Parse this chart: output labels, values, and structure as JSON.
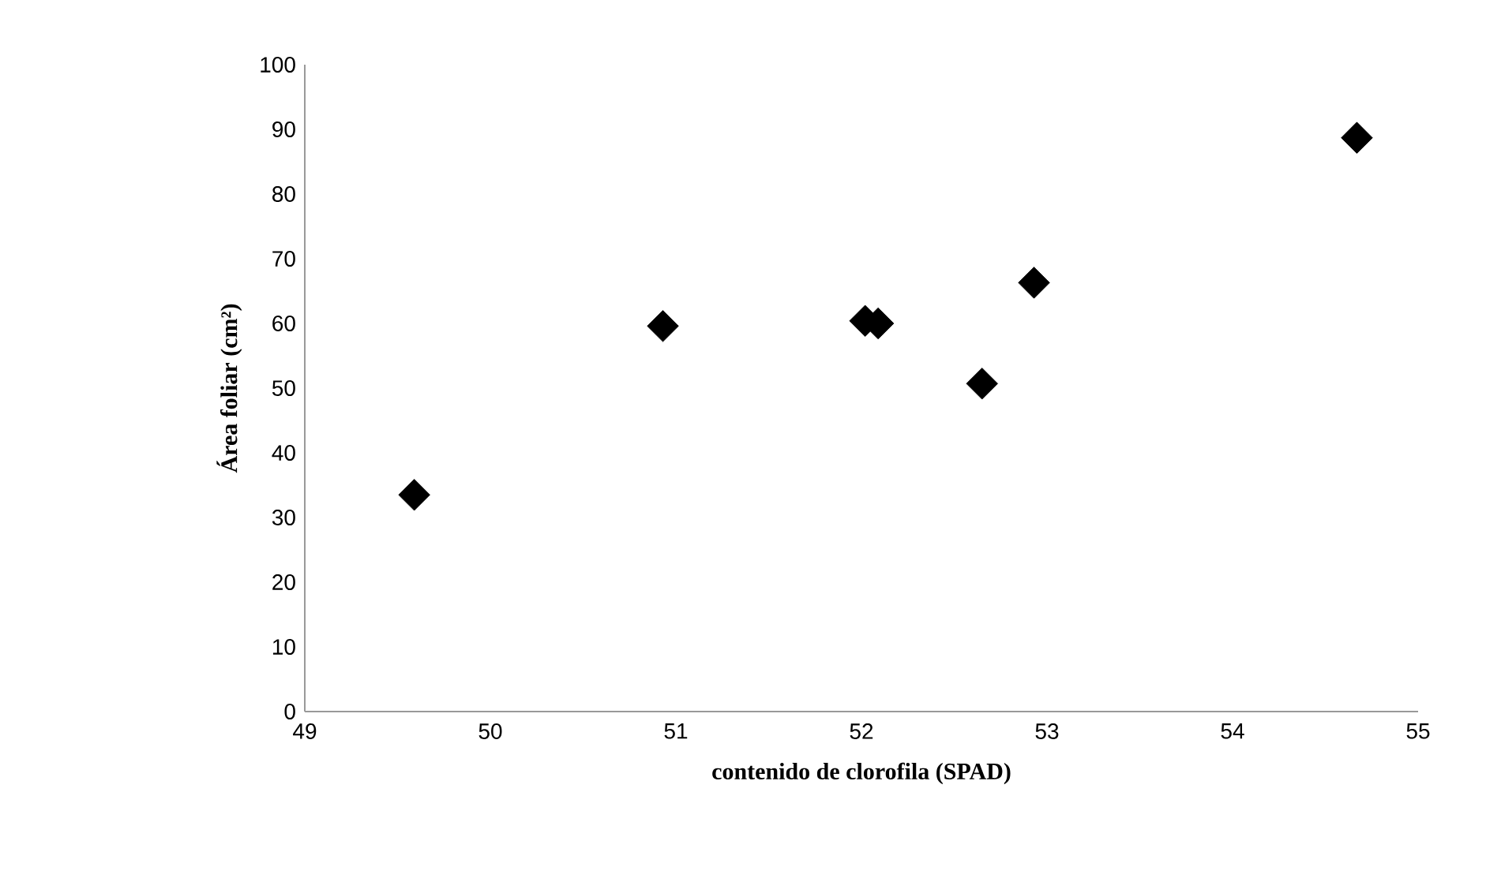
{
  "chart_data": {
    "type": "scatter",
    "xlabel": "contenido de clorofila (SPAD)",
    "ylabel": "Área foliar (cm²)",
    "x": [
      49.59,
      50.93,
      52.02,
      52.09,
      52.65,
      52.93,
      54.67
    ],
    "values": [
      33.5,
      59.6,
      60.4,
      60.0,
      50.7,
      66.3,
      88.7
    ],
    "color": "#000000",
    "xlim": [
      49,
      55
    ],
    "xticks": [
      49,
      50,
      51,
      52,
      53,
      54,
      55
    ],
    "ylim": [
      0,
      100
    ],
    "yticks": [
      0,
      10,
      20,
      30,
      40,
      50,
      60,
      70,
      80,
      90,
      100
    ],
    "marker": "diamond"
  }
}
